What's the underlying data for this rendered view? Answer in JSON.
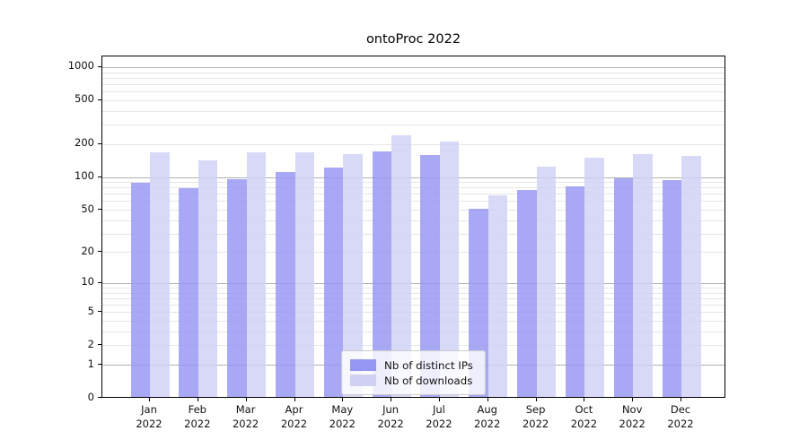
{
  "chart_data": {
    "type": "bar",
    "title": "ontoProc 2022",
    "scale": "log1p",
    "months": [
      "Jan",
      "Feb",
      "Mar",
      "Apr",
      "May",
      "Jun",
      "Jul",
      "Aug",
      "Sep",
      "Oct",
      "Nov",
      "Dec"
    ],
    "year": "2022",
    "series": [
      {
        "name": "Nb of distinct IPs",
        "color": "#9595f3",
        "values": [
          87,
          78,
          94,
          109,
          119,
          167,
          155,
          50,
          75,
          80,
          95,
          92
        ]
      },
      {
        "name": "Nb of downloads",
        "color": "#d0d0f5",
        "values": [
          165,
          139,
          165,
          164,
          158,
          237,
          207,
          66,
          121,
          147,
          160,
          153
        ]
      }
    ],
    "y_ticks": [
      0,
      1,
      2,
      5,
      10,
      20,
      50,
      100,
      200,
      500,
      1000
    ],
    "ylim": [
      0,
      1250
    ],
    "grid": true,
    "legend_position": "bottom-center",
    "colors": {
      "major_grid": "#b0b0b0",
      "minor_grid": "#e6e6e6",
      "axis": "#000000",
      "text": "#111111",
      "background": "#ffffff"
    }
  }
}
